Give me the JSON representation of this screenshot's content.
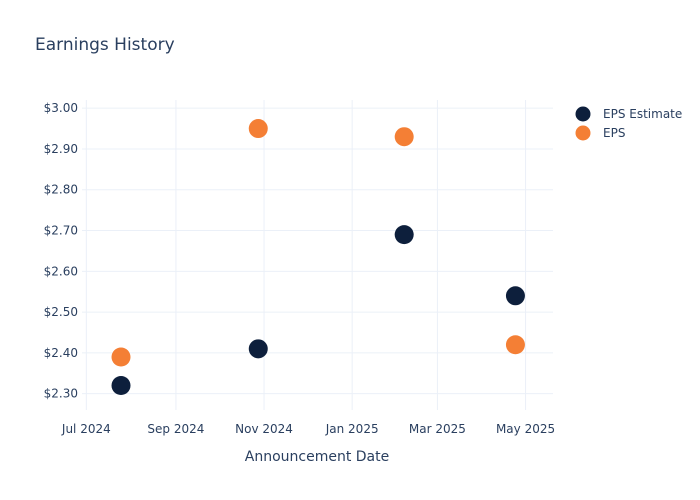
{
  "chart_data": {
    "type": "scatter",
    "title": "Earnings History",
    "xlabel": "Announcement Date",
    "ylabel": "",
    "x_axis_type": "date",
    "xlim": [
      "2024-06-28",
      "2025-05-20"
    ],
    "ylim": [
      2.26,
      3.02
    ],
    "x_ticks": [
      {
        "date": "2024-07-01",
        "label": "Jul 2024"
      },
      {
        "date": "2024-09-01",
        "label": "Sep 2024"
      },
      {
        "date": "2024-11-01",
        "label": "Nov 2024"
      },
      {
        "date": "2025-01-01",
        "label": "Jan 2025"
      },
      {
        "date": "2025-03-01",
        "label": "Mar 2025"
      },
      {
        "date": "2025-05-01",
        "label": "May 2025"
      }
    ],
    "y_ticks": [
      {
        "value": 2.3,
        "label": "$2.30"
      },
      {
        "value": 2.4,
        "label": "$2.40"
      },
      {
        "value": 2.5,
        "label": "$2.50"
      },
      {
        "value": 2.6,
        "label": "$2.60"
      },
      {
        "value": 2.7,
        "label": "$2.70"
      },
      {
        "value": 2.8,
        "label": "$2.80"
      },
      {
        "value": 2.9,
        "label": "$2.90"
      },
      {
        "value": 3.0,
        "label": "$3.00"
      }
    ],
    "grid": true,
    "legend_position": "top-right",
    "series": [
      {
        "name": "EPS Estimate",
        "color": "#0d1f3c",
        "points": [
          {
            "x": "2024-07-25",
            "y": 2.32
          },
          {
            "x": "2024-10-28",
            "y": 2.41
          },
          {
            "x": "2025-02-06",
            "y": 2.69
          },
          {
            "x": "2025-04-24",
            "y": 2.54
          }
        ]
      },
      {
        "name": "EPS",
        "color": "#f47f35",
        "points": [
          {
            "x": "2024-07-25",
            "y": 2.39
          },
          {
            "x": "2024-10-28",
            "y": 2.95
          },
          {
            "x": "2025-02-06",
            "y": 2.93
          },
          {
            "x": "2025-04-24",
            "y": 2.42
          }
        ]
      }
    ]
  }
}
